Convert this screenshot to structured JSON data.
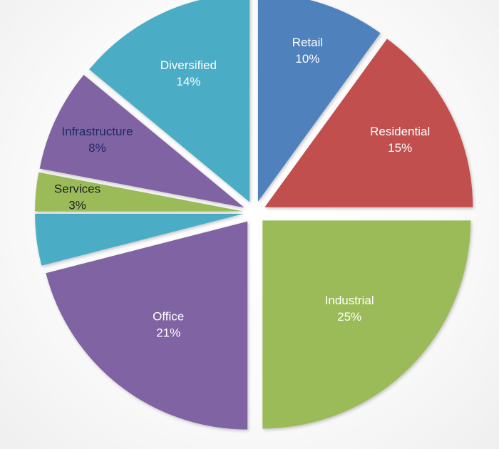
{
  "chart_data": {
    "type": "pie",
    "title": "",
    "legend": "none",
    "slices": [
      {
        "name": "Retail",
        "label": "Retail",
        "value": 10,
        "value_label": "10%",
        "color": "#4f81bd",
        "text_color": "#ffffff"
      },
      {
        "name": "Residential",
        "label": "Residential",
        "value": 15,
        "value_label": "15%",
        "color": "#c0504d",
        "text_color": "#ffffff"
      },
      {
        "name": "Industrial",
        "label": "Industrial",
        "value": 25,
        "value_label": "25%",
        "color": "#9bbb59",
        "text_color": "#ffffff"
      },
      {
        "name": "Office",
        "label": "Office",
        "value": 21,
        "value_label": "21%",
        "color": "#8064a2",
        "text_color": "#ffffff"
      },
      {
        "name": "",
        "label": "",
        "value": 4,
        "value_label": "",
        "color": "#4bacc6",
        "text_color": "#ffffff"
      },
      {
        "name": "Services",
        "label": "Services",
        "value": 3,
        "value_label": "3%",
        "color": "#9bbb59",
        "text_color": "#1f1f1f"
      },
      {
        "name": "Infrastructure",
        "label": "Infrastructure",
        "value": 8,
        "value_label": "8%",
        "color": "#8064a2",
        "text_color": "#1f2a6b"
      },
      {
        "name": "Diversified",
        "label": "Diversified",
        "value": 14,
        "value_label": "14%",
        "color": "#4bacc6",
        "text_color": "#ffffff"
      }
    ]
  }
}
